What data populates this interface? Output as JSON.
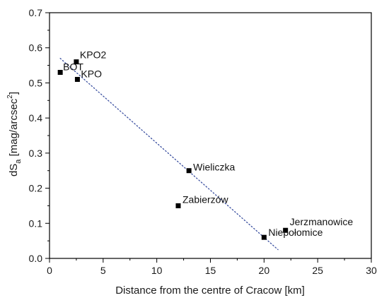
{
  "chart_data": {
    "type": "scatter",
    "title": "",
    "xlabel": "Distance from the centre of Cracow [km]",
    "ylabel": {
      "base": "dS",
      "subscript": "a",
      "unit_prefix": " [mag/arcsec",
      "unit_power": "2",
      "unit_suffix": "]"
    },
    "xlim": [
      0,
      30
    ],
    "ylim": [
      0.0,
      0.7
    ],
    "xticks": [
      0,
      5,
      10,
      15,
      20,
      25,
      30
    ],
    "yticks": [
      0.0,
      0.1,
      0.2,
      0.3,
      0.4,
      0.5,
      0.6,
      0.7
    ],
    "xtick_labels": [
      "0",
      "5",
      "10",
      "15",
      "20",
      "25",
      "30"
    ],
    "ytick_labels": [
      "0.0",
      "0.1",
      "0.2",
      "0.3",
      "0.4",
      "0.5",
      "0.6",
      "0.7"
    ],
    "grid": false,
    "legend": "none",
    "marker_color": "#000000",
    "trendline_color": "#3a4fa0",
    "points": [
      {
        "label": "BOT",
        "x": 1.0,
        "y": 0.53
      },
      {
        "label": "KPO2",
        "x": 2.5,
        "y": 0.56
      },
      {
        "label": "KPO",
        "x": 2.6,
        "y": 0.51
      },
      {
        "label": "Wieliczka",
        "x": 13.0,
        "y": 0.25
      },
      {
        "label": "Zabierzów",
        "x": 12.0,
        "y": 0.15
      },
      {
        "label": "Niepołomice",
        "x": 20.0,
        "y": 0.06
      },
      {
        "label": "Jerzmanowice",
        "x": 22.0,
        "y": 0.08
      }
    ],
    "trendline": {
      "style": "dotted",
      "x": [
        1.0,
        21.3
      ],
      "y": [
        0.57,
        0.025
      ]
    }
  }
}
